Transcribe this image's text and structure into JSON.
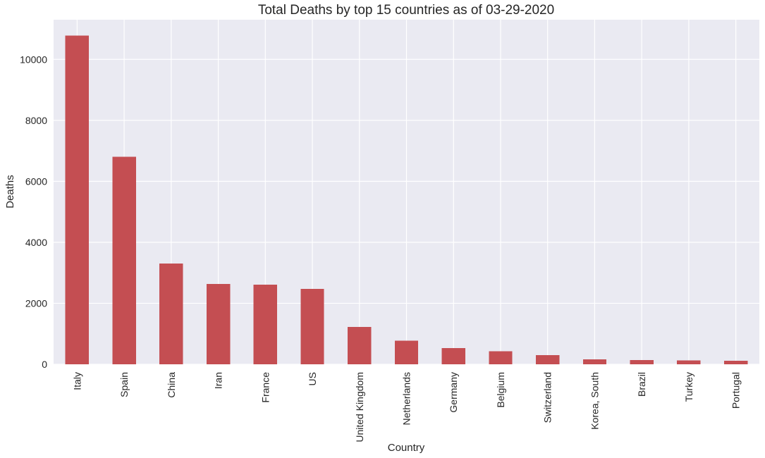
{
  "chart_data": {
    "type": "bar",
    "title": "Total Deaths by top 15 countries as of 03-29-2020",
    "xlabel": "Country",
    "ylabel": "Deaths",
    "categories": [
      "Italy",
      "Spain",
      "China",
      "Iran",
      "France",
      "US",
      "United Kingdom",
      "Netherlands",
      "Germany",
      "Belgium",
      "Switzerland",
      "Korea, South",
      "Brazil",
      "Turkey",
      "Portugal"
    ],
    "values": [
      10779,
      6803,
      3304,
      2640,
      2611,
      2467,
      1228,
      772,
      533,
      431,
      300,
      158,
      136,
      131,
      119
    ],
    "ylim": [
      0,
      11300
    ],
    "yticks": [
      0,
      2000,
      4000,
      6000,
      8000,
      10000
    ],
    "grid": true,
    "bar_color": "#c44e52",
    "background_color": "#eaeaf2"
  }
}
